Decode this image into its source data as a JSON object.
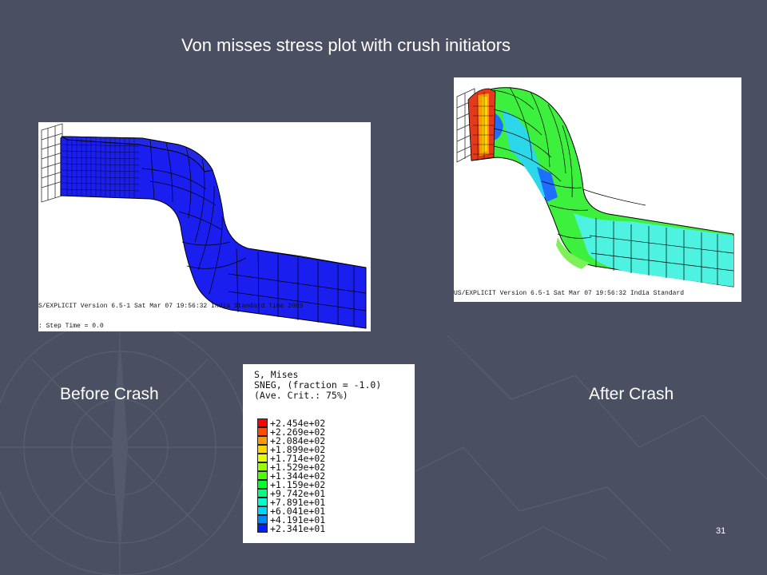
{
  "slide": {
    "title": "Von misses stress plot with crush initiators",
    "page_number": "31"
  },
  "captions": {
    "before": "Before Crash",
    "after": "After Crash"
  },
  "before_panel": {
    "footer_line1": "S/EXPLICIT Version 6.5-1    Sat Mar 07 19:56:32 India Standard Time 2009",
    "footer_line2": ": Step Time = 0.0",
    "fill_color": "#1a1ff0"
  },
  "after_panel": {
    "footer_line1": "US/EXPLICIT Version 6.5-1    Sat Mar 07 19:56:32 India Standard"
  },
  "legend": {
    "header_line1": "S, Mises",
    "header_line2": "SNEG, (fraction = -1.0)",
    "header_line3": "(Ave. Crit.: 75%)",
    "entries": [
      {
        "label": "+2.454e+02",
        "color": "#ff0000"
      },
      {
        "label": "+2.269e+02",
        "color": "#ff4d00"
      },
      {
        "label": "+2.084e+02",
        "color": "#ff9a00"
      },
      {
        "label": "+1.899e+02",
        "color": "#ffd400"
      },
      {
        "label": "+1.714e+02",
        "color": "#e6ff00"
      },
      {
        "label": "+1.529e+02",
        "color": "#9aff00"
      },
      {
        "label": "+1.344e+02",
        "color": "#4dff00"
      },
      {
        "label": "+1.159e+02",
        "color": "#00ff2a"
      },
      {
        "label": "+9.742e+01",
        "color": "#00ff80"
      },
      {
        "label": "+7.891e+01",
        "color": "#00ffd0"
      },
      {
        "label": "+6.041e+01",
        "color": "#00d4ff"
      },
      {
        "label": "+4.191e+01",
        "color": "#0088ff"
      },
      {
        "label": "+2.341e+01",
        "color": "#0020ff"
      }
    ]
  }
}
